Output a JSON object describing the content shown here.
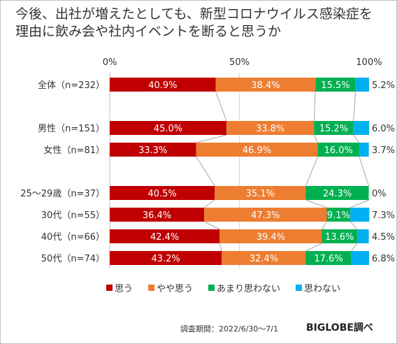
{
  "title_lines": [
    "今後、出社が増えたとしても、新型コロナウイルス感染症を",
    "理由に飲み会や社内イベントを断ると思うか"
  ],
  "source": "調査期間：2022/6/30〜7/1",
  "brand": "BIGLOBE調べ",
  "chart_data": {
    "type": "bar",
    "orientation": "horizontal",
    "stacked": "100%",
    "axis_ticks": [
      "0%",
      "50%",
      "100%"
    ],
    "categories": [
      "全体（n=232）",
      "男性（n=151）",
      "女性（n=81）",
      "25〜29歳（n=37）",
      "30代（n=55）",
      "40代（n=66）",
      "50代（n=74）"
    ],
    "groups": [
      [
        0
      ],
      [
        1,
        2
      ],
      [
        3,
        4,
        5,
        6
      ]
    ],
    "series": [
      {
        "name": "思う",
        "color": "#c00000",
        "values": [
          40.9,
          45.0,
          33.3,
          40.5,
          36.4,
          42.4,
          43.2
        ],
        "labels": [
          "40.9%",
          "45.0%",
          "33.3%",
          "40.5%",
          "36.4%",
          "42.4%",
          "43.2%"
        ]
      },
      {
        "name": "やや思う",
        "color": "#ed7d31",
        "values": [
          38.4,
          33.8,
          46.9,
          35.1,
          47.3,
          39.4,
          32.4
        ],
        "labels": [
          "38.4%",
          "33.8%",
          "46.9%",
          "35.1%",
          "47.3%",
          "39.4%",
          "32.4%"
        ]
      },
      {
        "name": "あまり思わない",
        "color": "#00b050",
        "values": [
          15.5,
          15.2,
          16.0,
          24.3,
          9.1,
          13.6,
          17.6
        ],
        "labels": [
          "15.5%",
          "15.2%",
          "16.0%",
          "24.3%",
          "9.1%",
          "13.6%",
          "17.6%"
        ]
      },
      {
        "name": "思わない",
        "color": "#00b0f0",
        "values": [
          5.2,
          6.0,
          3.7,
          0,
          7.3,
          4.5,
          6.8
        ],
        "labels": [
          "5.2%",
          "6.0%",
          "3.7%",
          "0%",
          "7.3%",
          "4.5%",
          "6.8%"
        ]
      }
    ],
    "legend_position": "bottom",
    "gridlines": true,
    "series_connector_lines": true
  }
}
